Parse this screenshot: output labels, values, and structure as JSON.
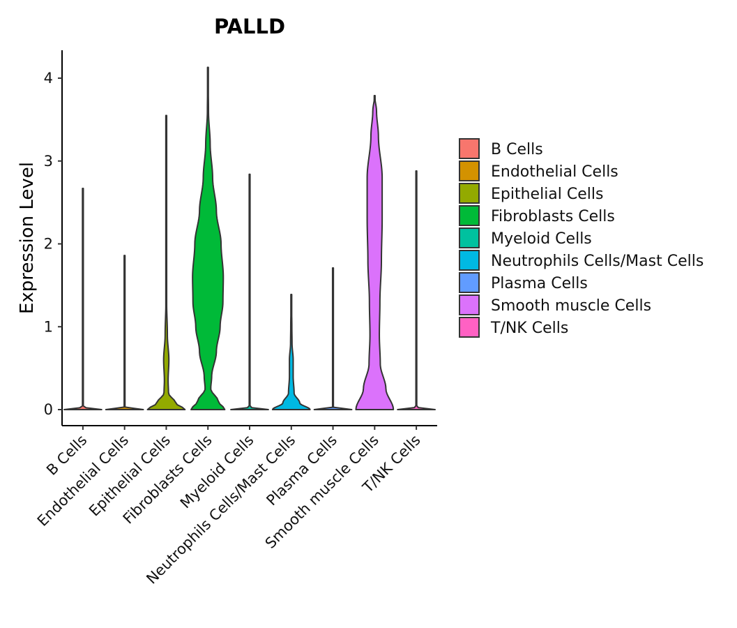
{
  "chart_data": {
    "type": "violin",
    "title": "PALLD",
    "xlabel": "",
    "ylabel": "Expression Level",
    "ylim": [
      -0.2,
      4.35
    ],
    "yticks": [
      0,
      1,
      2,
      3,
      4
    ],
    "legend_position": "right",
    "series": [
      {
        "name": "B Cells",
        "color": "#F8766D",
        "max": 2.67,
        "profile": [
          [
            0,
            1.0
          ],
          [
            0.03,
            0.0
          ],
          [
            2.67,
            0.0
          ]
        ]
      },
      {
        "name": "Endothelial Cells",
        "color": "#D39200",
        "max": 1.86,
        "profile": [
          [
            0,
            1.0
          ],
          [
            0.03,
            0.0
          ],
          [
            1.86,
            0.0
          ]
        ]
      },
      {
        "name": "Epithelial Cells",
        "color": "#93AA00",
        "max": 3.55,
        "profile": [
          [
            0,
            1.0
          ],
          [
            0.08,
            0.5
          ],
          [
            0.2,
            0.12
          ],
          [
            0.35,
            0.1
          ],
          [
            0.6,
            0.14
          ],
          [
            0.9,
            0.06
          ],
          [
            1.3,
            0.02
          ],
          [
            2.0,
            0.0
          ],
          [
            3.55,
            0.0
          ]
        ]
      },
      {
        "name": "Fibroblasts Cells",
        "color": "#00BA38",
        "max": 4.13,
        "profile": [
          [
            0,
            0.9
          ],
          [
            0.1,
            0.55
          ],
          [
            0.25,
            0.15
          ],
          [
            0.4,
            0.2
          ],
          [
            0.7,
            0.45
          ],
          [
            1.0,
            0.65
          ],
          [
            1.3,
            0.8
          ],
          [
            1.6,
            0.82
          ],
          [
            2.0,
            0.7
          ],
          [
            2.4,
            0.45
          ],
          [
            2.8,
            0.25
          ],
          [
            3.2,
            0.12
          ],
          [
            3.6,
            0.03
          ],
          [
            4.13,
            0.0
          ]
        ]
      },
      {
        "name": "Myeloid Cells",
        "color": "#00C19F",
        "max": 2.84,
        "profile": [
          [
            0,
            1.0
          ],
          [
            0.03,
            0.0
          ],
          [
            2.84,
            0.0
          ]
        ]
      },
      {
        "name": "Neutrophils Cells/Mast Cells",
        "color": "#00B9E3",
        "max": 1.39,
        "profile": [
          [
            0,
            1.0
          ],
          [
            0.08,
            0.45
          ],
          [
            0.2,
            0.15
          ],
          [
            0.4,
            0.1
          ],
          [
            0.6,
            0.1
          ],
          [
            0.8,
            0.04
          ],
          [
            1.0,
            0.03
          ],
          [
            1.39,
            0.0
          ]
        ]
      },
      {
        "name": "Plasma Cells",
        "color": "#619CFF",
        "max": 1.71,
        "profile": [
          [
            0,
            1.0
          ],
          [
            0.03,
            0.0
          ],
          [
            1.71,
            0.0
          ]
        ]
      },
      {
        "name": "Smooth muscle Cells",
        "color": "#DB72FB",
        "max": 3.79,
        "profile": [
          [
            0,
            1.0
          ],
          [
            0.25,
            0.6
          ],
          [
            0.55,
            0.3
          ],
          [
            0.9,
            0.25
          ],
          [
            1.3,
            0.28
          ],
          [
            1.8,
            0.36
          ],
          [
            2.3,
            0.4
          ],
          [
            2.8,
            0.4
          ],
          [
            3.3,
            0.2
          ],
          [
            3.6,
            0.1
          ],
          [
            3.79,
            0.0
          ]
        ]
      },
      {
        "name": "T/NK Cells",
        "color": "#FF61C3",
        "max": 2.88,
        "profile": [
          [
            0,
            1.0
          ],
          [
            0.03,
            0.0
          ],
          [
            2.88,
            0.0
          ]
        ]
      }
    ]
  }
}
